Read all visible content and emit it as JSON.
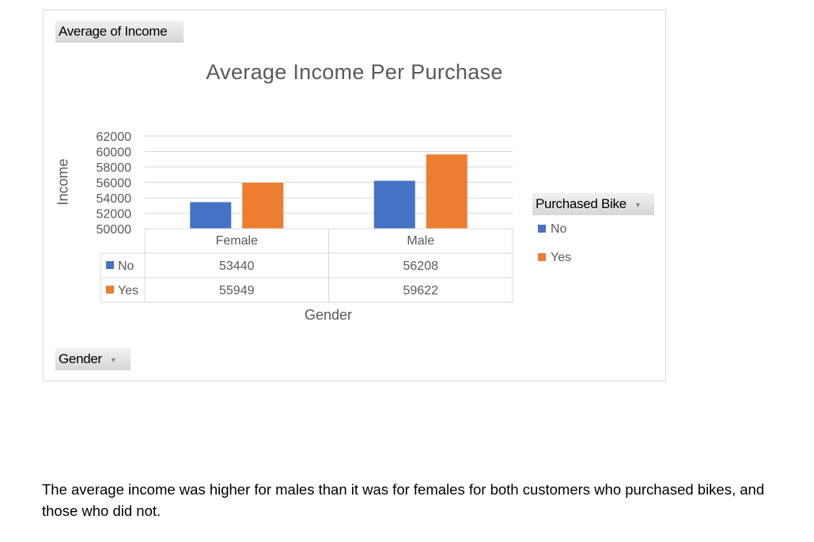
{
  "pivot": {
    "value_field": "Average of Income",
    "axis_field": "Gender",
    "legend_field": "Purchased Bike"
  },
  "colors": {
    "No": "#4472c4",
    "Yes": "#ed7d31"
  },
  "chart_data": {
    "type": "bar",
    "title": "Average Income Per Purchase",
    "xlabel": "Gender",
    "ylabel": "Income",
    "categories": [
      "Female",
      "Male"
    ],
    "series": [
      {
        "name": "No",
        "values": [
          53440,
          56208
        ]
      },
      {
        "name": "Yes",
        "values": [
          55949,
          59622
        ]
      }
    ],
    "yticks": [
      "62000",
      "60000",
      "58000",
      "56000",
      "54000",
      "52000",
      "50000"
    ],
    "ylim": [
      50000,
      62000
    ],
    "grid": true,
    "legend": "right",
    "data_table": true
  },
  "caption": "The average income was higher for males than it was for females for both customers who purchased bikes, and those who did not."
}
